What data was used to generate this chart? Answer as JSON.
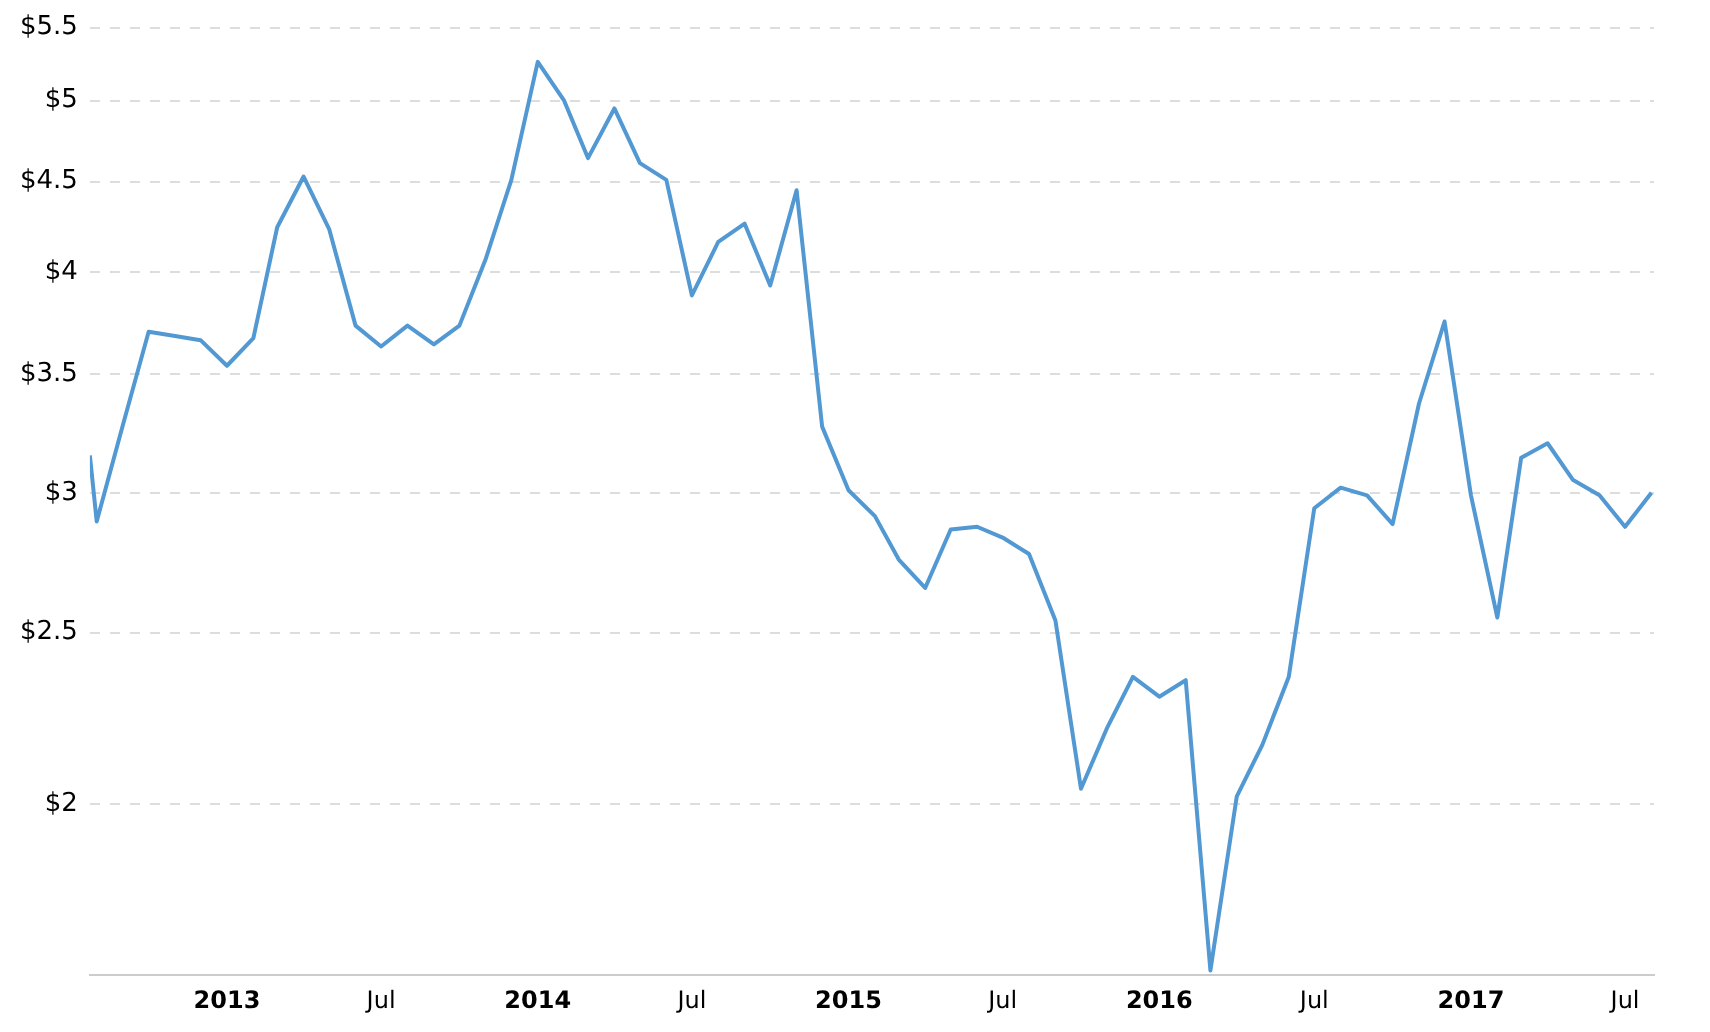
{
  "chart_data": {
    "type": "line",
    "x": [
      "2012-07-24",
      "2012-08",
      "2012-09",
      "2012-10",
      "2012-11",
      "2012-12",
      "2013-01",
      "2013-02",
      "2013-03",
      "2013-04",
      "2013-05",
      "2013-06",
      "2013-07",
      "2013-08",
      "2013-09",
      "2013-10",
      "2013-11",
      "2013-12",
      "2014-01",
      "2014-02",
      "2014-03",
      "2014-04",
      "2014-05",
      "2014-06",
      "2014-07",
      "2014-08",
      "2014-09",
      "2014-10",
      "2014-11",
      "2014-12",
      "2015-01",
      "2015-02",
      "2015-03",
      "2015-04",
      "2015-05",
      "2015-06",
      "2015-07",
      "2015-08",
      "2015-09",
      "2015-10",
      "2015-11",
      "2015-12",
      "2016-01",
      "2016-02",
      "2016-03",
      "2016-04",
      "2016-05",
      "2016-06",
      "2016-07",
      "2016-08",
      "2016-09",
      "2016-10",
      "2016-11",
      "2016-12",
      "2017-01",
      "2017-02",
      "2017-03",
      "2017-04",
      "2017-05",
      "2017-06",
      "2017-07",
      "2017-08"
    ],
    "series": [
      {
        "color": "#5299d3",
        "values": [
          3.15,
          2.89,
          3.28,
          3.7,
          3.68,
          3.66,
          3.54,
          3.67,
          4.24,
          4.53,
          4.23,
          3.73,
          3.63,
          3.73,
          3.64,
          3.73,
          4.07,
          4.51,
          5.26,
          5.0,
          4.64,
          4.95,
          4.61,
          4.51,
          3.88,
          4.16,
          4.26,
          3.93,
          4.45,
          3.27,
          3.01,
          2.91,
          2.75,
          2.65,
          2.86,
          2.87,
          2.83,
          2.77,
          2.54,
          2.04,
          2.21,
          2.36,
          2.3,
          2.35,
          1.61,
          2.02,
          2.16,
          2.36,
          2.94,
          3.02,
          2.99,
          2.88,
          3.37,
          3.75,
          2.99,
          2.55,
          3.14,
          3.2,
          3.05,
          2.99,
          2.87,
          3.0
        ]
      }
    ],
    "xlim": [
      "2012-07-24",
      "2017-08-04"
    ],
    "xticks": [
      "2013",
      {
        "value": "2013-07",
        "label": "Jul"
      },
      "2014",
      {
        "value": "2014-07",
        "label": "Jul"
      },
      "2015",
      {
        "value": "2015-07",
        "label": "Jul"
      },
      "2016",
      {
        "value": "2016-07",
        "label": "Jul"
      },
      "2017",
      {
        "value": "2017-07",
        "label": "Jul"
      }
    ],
    "ylim": [
      1.6,
      5.5
    ],
    "yticks": [
      {
        "value": 2,
        "label": "$2"
      },
      {
        "value": 2.5,
        "label": "$2.5"
      },
      {
        "value": 3,
        "label": "$3"
      },
      {
        "value": 3.5,
        "label": "$3.5"
      },
      {
        "value": 4,
        "label": "$4"
      },
      {
        "value": 4.5,
        "label": "$4.5"
      },
      {
        "value": 5,
        "label": "$5"
      },
      {
        "value": 5.5,
        "label": "$5.5"
      }
    ],
    "log": true,
    "grid": "y",
    "marker": "none",
    "line_style": "solid"
  }
}
